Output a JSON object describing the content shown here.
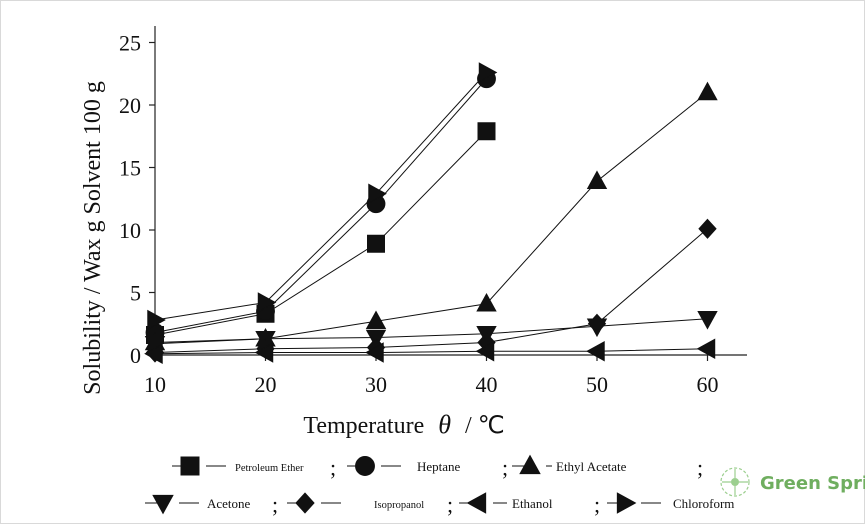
{
  "chart_data": {
    "type": "line",
    "xlabel_prefix": "Temperature",
    "xlabel_symbol": "θ",
    "xlabel_unit": "/ ℃",
    "ylabel": "Solubility / Wax g Solvent 100 g",
    "xlim": [
      10,
      62
    ],
    "ylim": [
      0,
      25
    ],
    "x_ticks": [
      10,
      20,
      30,
      40,
      50,
      60
    ],
    "y_ticks": [
      0,
      5,
      10,
      15,
      20,
      25
    ],
    "grid": false,
    "legend_position": "bottom",
    "series": [
      {
        "name": "Petroleum Ether",
        "marker": "square",
        "x": [
          10,
          20,
          30,
          40
        ],
        "y": [
          1.6,
          3.3,
          8.9,
          17.9
        ]
      },
      {
        "name": "Heptane",
        "marker": "circle",
        "x": [
          10,
          20,
          30,
          40
        ],
        "y": [
          1.8,
          3.5,
          12.1,
          22.1
        ]
      },
      {
        "name": "Ethyl Acetate",
        "marker": "triangle-up",
        "x": [
          10,
          20,
          30,
          40,
          50,
          60
        ],
        "y": [
          1.0,
          1.3,
          2.7,
          4.1,
          13.9,
          21.0
        ]
      },
      {
        "name": "Acetone",
        "marker": "triangle-down",
        "x": [
          10,
          20,
          30,
          40,
          50,
          60
        ],
        "y": [
          0.9,
          1.3,
          1.4,
          1.7,
          2.3,
          2.9
        ]
      },
      {
        "name": "Isopropanol",
        "marker": "diamond",
        "x": [
          10,
          20,
          30,
          40,
          50,
          60
        ],
        "y": [
          0.2,
          0.5,
          0.6,
          1.0,
          2.5,
          10.1
        ]
      },
      {
        "name": "Ethanol",
        "marker": "triangle-left",
        "x": [
          10,
          20,
          30,
          40,
          50,
          60
        ],
        "y": [
          0.1,
          0.2,
          0.2,
          0.3,
          0.3,
          0.5
        ]
      },
      {
        "name": "Chloroform",
        "marker": "triangle-right",
        "x": [
          10,
          20,
          30,
          40
        ],
        "y": [
          2.8,
          4.2,
          12.9,
          22.6
        ]
      }
    ]
  },
  "legend": {
    "separator": ";"
  },
  "watermark": {
    "text": "Green Spring",
    "color": "#6fae5f"
  }
}
